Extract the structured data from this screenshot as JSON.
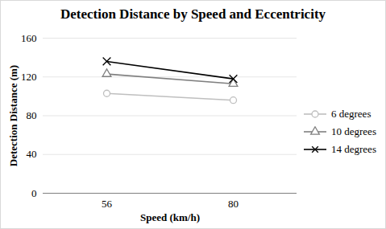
{
  "chart_data": {
    "type": "line",
    "title": "Detection Distance by Speed and Eccentricity",
    "x_label": "Speed (km/h)",
    "y_label": "Detection Distance (m)",
    "categories": [
      "56",
      "80"
    ],
    "series": [
      {
        "name": "6 degrees",
        "color": "#bfbfbf",
        "marker": "circle",
        "values": [
          103,
          96
        ]
      },
      {
        "name": "10 degrees",
        "color": "#808080",
        "marker": "triangle",
        "values": [
          123,
          113
        ]
      },
      {
        "name": "14 degrees",
        "color": "#000000",
        "marker": "x",
        "values": [
          136,
          118
        ]
      }
    ],
    "ylim": [
      0,
      160
    ],
    "yticks": [
      0,
      40,
      80,
      120,
      160
    ],
    "grid": true,
    "legend": "right"
  }
}
